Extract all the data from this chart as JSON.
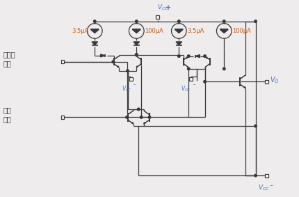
{
  "bg_color": "#eeecec",
  "lc": "#383838",
  "blue": "#4472c4",
  "orange": "#c55a11",
  "current_labels": [
    "3.5μA",
    "100μA",
    "3.5μA",
    "100μA"
  ],
  "label_noninv": "非反相\n输入",
  "label_inv": "反相\n输入",
  "label_vo": "Vₒ",
  "label_vcc_p": "V",
  "label_vcc_m": "V"
}
